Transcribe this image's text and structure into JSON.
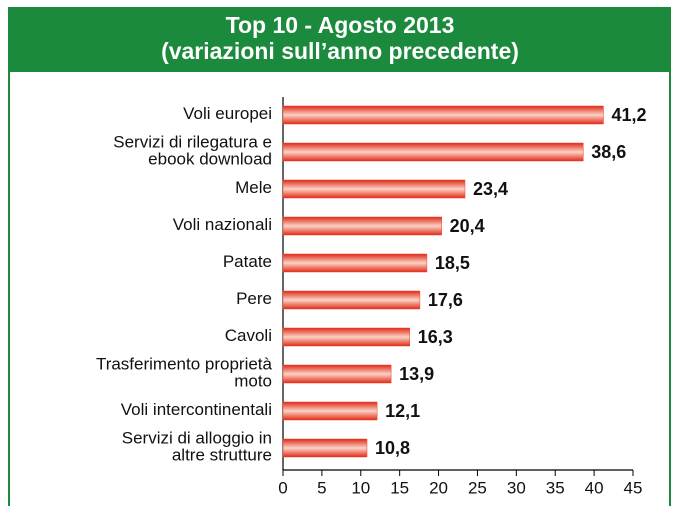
{
  "chart_data": {
    "type": "barh",
    "title": "Top 10 - Agosto 2013",
    "subtitle": "(variazioni sull’anno precedente)",
    "categories": [
      "Voli europei",
      "Servizi di rilegatura e\nebook download",
      "Mele",
      "Voli nazionali",
      "Patate",
      "Pere",
      "Cavoli",
      "Trasferimento proprietà\nmoto",
      "Voli intercontinentali",
      "Servizi di alloggio in\naltre strutture"
    ],
    "values": [
      41.2,
      38.6,
      23.4,
      20.4,
      18.5,
      17.6,
      16.3,
      13.9,
      12.1,
      10.8
    ],
    "value_labels": [
      "41,2",
      "38,6",
      "23,4",
      "20,4",
      "18,5",
      "17,6",
      "16,3",
      "13,9",
      "12,1",
      "10,8"
    ],
    "color": "#e8402a",
    "xlim": [
      0,
      45
    ],
    "xticks": [
      0,
      5,
      10,
      15,
      20,
      25,
      30,
      35,
      40,
      45
    ],
    "grid": false
  }
}
